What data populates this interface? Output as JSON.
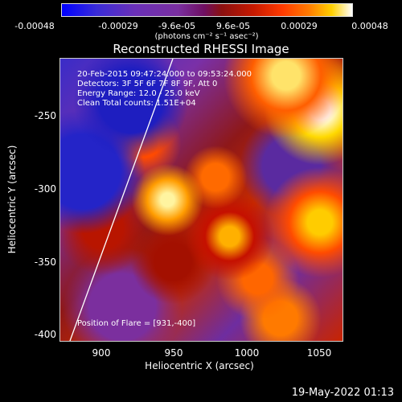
{
  "colorbar": {
    "ticks": [
      "-0.00048",
      "-0.00029",
      "-9.6e-05",
      "9.6e-05",
      "0.00029",
      "0.00048"
    ],
    "unit": "(photons cm⁻² s⁻¹ asec⁻²)"
  },
  "title": "Reconstructed RHESSI Image",
  "annotations": {
    "time": "20-Feb-2015 09:47:24.000 to 09:53:24.000",
    "detectors": "Detectors: 3F 5F 6F 7F 8F 9F, Att 0",
    "energy": "Energy Range: 12.0 - 25.0 keV",
    "clean": "Clean     Total counts: 1.51E+04",
    "flare_position": "Position of Flare = [931,-400]"
  },
  "axes": {
    "xlabel": "Heliocentric X (arcsec)",
    "ylabel": "Heliocentric Y (arcsec)",
    "xticks": [
      "900",
      "950",
      "1000",
      "1050"
    ],
    "yticks": [
      "-250",
      "-300",
      "-350",
      "-400"
    ]
  },
  "footer_date": "19-May-2022 01:13"
}
